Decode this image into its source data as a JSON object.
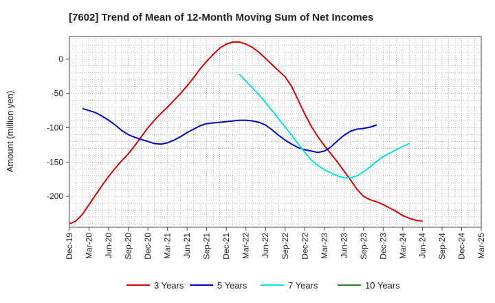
{
  "chart_data": {
    "type": "line",
    "title": "[7602]  Trend of Mean of 12-Month Moving Sum of Net Incomes",
    "ylabel": "Amount (million yen)",
    "xlabel": "",
    "x_tick_labels": [
      "Dec-19",
      "Mar-20",
      "Jun-20",
      "Sep-20",
      "Dec-20",
      "Mar-21",
      "Jun-21",
      "Sep-21",
      "Dec-21",
      "Mar-22",
      "Jun-22",
      "Sep-22",
      "Dec-22",
      "Mar-23",
      "Jun-23",
      "Sep-23",
      "Dec-23",
      "Mar-24",
      "Jun-24",
      "Sep-24",
      "Dec-24",
      "Mar-25"
    ],
    "y_ticks": [
      0,
      -50,
      -100,
      -150,
      -200
    ],
    "ylim": [
      -245,
      33
    ],
    "grid": true,
    "legend_position": "bottom",
    "series": [
      {
        "name": "3 Years",
        "color": "#dd0000",
        "start_index": 0,
        "values": [
          -240,
          -236,
          -226,
          -212,
          -198,
          -184,
          -171,
          -159,
          -148,
          -138,
          -126,
          -113,
          -100,
          -89,
          -79,
          -70,
          -60,
          -50,
          -39,
          -27,
          -14,
          -3,
          7,
          16,
          22,
          25,
          25,
          22,
          17,
          10,
          1,
          -8,
          -17,
          -26,
          -40,
          -60,
          -80,
          -98,
          -113,
          -126,
          -138,
          -150,
          -163,
          -176,
          -190,
          -200,
          -205,
          -208,
          -212,
          -217,
          -222,
          -228,
          -232,
          -235,
          -236
        ]
      },
      {
        "name": "5 Years",
        "color": "#0000cc",
        "start_index": 2,
        "values": [
          -72,
          -75,
          -78,
          -83,
          -89,
          -96,
          -104,
          -110,
          -114,
          -117,
          -120,
          -123,
          -124,
          -122,
          -118,
          -113,
          -107,
          -102,
          -97,
          -94,
          -93,
          -92,
          -91,
          -90,
          -89,
          -89,
          -90,
          -92,
          -96,
          -103,
          -111,
          -118,
          -124,
          -129,
          -132,
          -134,
          -136,
          -134,
          -128,
          -119,
          -111,
          -105,
          -102,
          -101,
          -99,
          -96
        ]
      },
      {
        "name": "7 Years",
        "color": "#00e5e5",
        "start_index": 26,
        "values": [
          -22,
          -32,
          -42,
          -52,
          -63,
          -75,
          -87,
          -99,
          -111,
          -124,
          -136,
          -147,
          -155,
          -161,
          -166,
          -170,
          -173,
          -173,
          -170,
          -164,
          -157,
          -149,
          -142,
          -137,
          -132,
          -127,
          -123
        ]
      },
      {
        "name": "10 Years",
        "color": "#228b22",
        "start_index": 0,
        "values": []
      }
    ]
  }
}
